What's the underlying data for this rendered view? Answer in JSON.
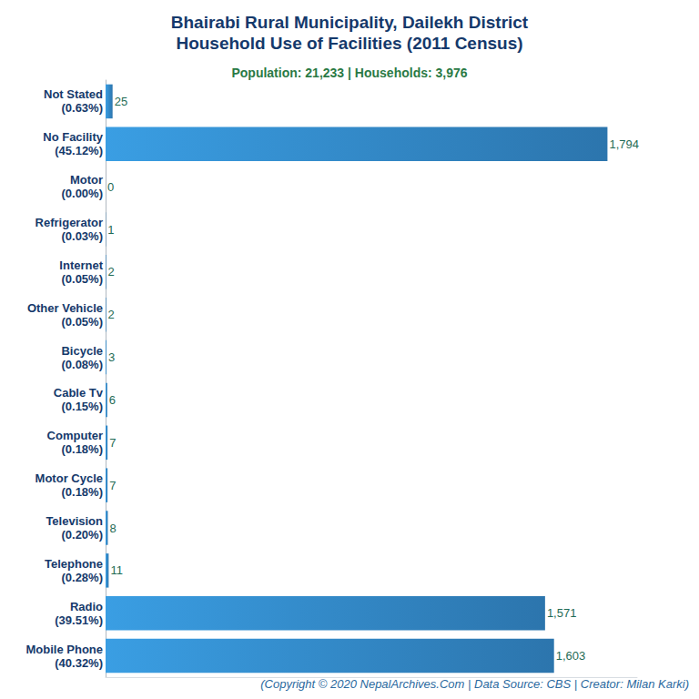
{
  "chart_data": {
    "type": "bar",
    "title": "Bhairabi Rural Municipality, Dailekh District\nHousehold Use of Facilities (2011 Census)",
    "subtitle": "Population: 21,233 | Households: 3,976",
    "footer": "(Copyright © 2020 NepalArchives.Com | Data Source: CBS | Creator: Milan Karki)",
    "orientation": "horizontal",
    "categories": [
      "Not Stated\n(0.63%)",
      "No Facility\n(45.12%)",
      "Motor\n(0.00%)",
      "Refrigerator\n(0.03%)",
      "Internet\n(0.05%)",
      "Other Vehicle\n(0.05%)",
      "Bicycle\n(0.08%)",
      "Cable Tv\n(0.15%)",
      "Computer\n(0.18%)",
      "Motor Cycle\n(0.18%)",
      "Television\n(0.20%)",
      "Telephone\n(0.28%)",
      "Radio\n(39.51%)",
      "Mobile Phone\n(40.32%)"
    ],
    "values": [
      25,
      1794,
      0,
      1,
      2,
      2,
      3,
      6,
      7,
      7,
      8,
      11,
      1571,
      1603
    ],
    "value_labels": [
      "25",
      "1,794",
      "0",
      "1",
      "2",
      "2",
      "3",
      "6",
      "7",
      "7",
      "8",
      "11",
      "1,571",
      "1,603"
    ],
    "color": "#2c75ad",
    "xlim": [
      0,
      1900
    ],
    "data_labels": true,
    "tick_labels": "y",
    "grid": false
  }
}
